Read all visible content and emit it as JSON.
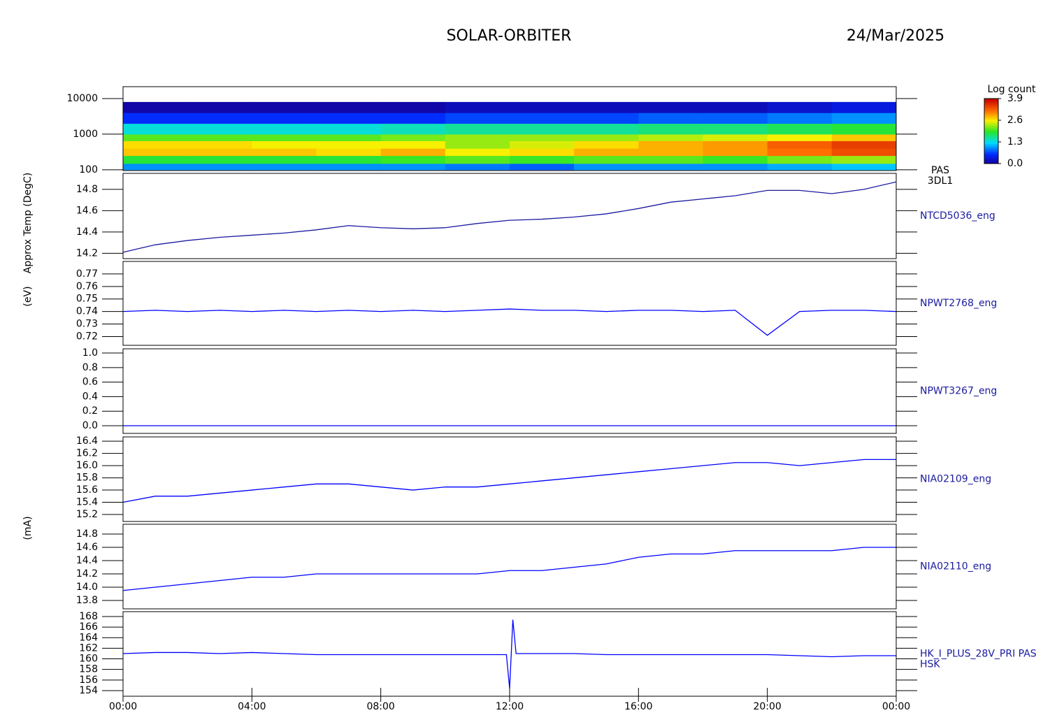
{
  "header": {
    "title": "SOLAR-ORBITER",
    "date": "24/Mar/2025"
  },
  "chart_data": [
    {
      "type": "heatmap",
      "ylabel": "(eV)",
      "legend": [
        "PAS",
        "3DL1"
      ],
      "log": true,
      "xlim": [
        0,
        24
      ],
      "ylim": [
        95,
        21500
      ],
      "yticks": [
        100,
        1000,
        10000
      ],
      "x_bins": [
        0,
        2,
        4,
        6,
        8,
        10,
        12,
        14,
        16,
        18,
        20,
        22,
        24
      ],
      "y_bins": [
        100,
        150,
        250,
        400,
        650,
        1000,
        2000,
        4000,
        8000
      ],
      "z": [
        [
          1.0,
          1.0,
          1.0,
          1.0,
          1.0,
          0.9,
          0.8,
          1.0,
          1.0,
          1.0,
          1.1,
          1.2
        ],
        [
          1.9,
          1.9,
          1.9,
          1.9,
          2.0,
          2.1,
          2.0,
          2.1,
          2.1,
          2.0,
          2.2,
          2.3
        ],
        [
          2.8,
          2.8,
          2.8,
          2.7,
          2.9,
          2.6,
          2.7,
          2.9,
          2.9,
          3.0,
          3.2,
          3.4
        ],
        [
          2.7,
          2.7,
          2.6,
          2.6,
          2.6,
          2.3,
          2.5,
          2.7,
          2.9,
          3.0,
          3.3,
          3.5
        ],
        [
          2.1,
          2.1,
          2.1,
          2.1,
          2.2,
          2.3,
          2.3,
          2.3,
          2.4,
          2.5,
          2.6,
          2.8
        ],
        [
          1.4,
          1.4,
          1.4,
          1.4,
          1.5,
          1.6,
          1.6,
          1.6,
          1.7,
          1.7,
          1.8,
          1.9
        ],
        [
          0.6,
          0.6,
          0.6,
          0.6,
          0.6,
          0.7,
          0.7,
          0.7,
          0.8,
          0.8,
          0.9,
          1.0
        ],
        [
          0.1,
          0.1,
          0.1,
          0.1,
          0.1,
          0.2,
          0.2,
          0.2,
          0.2,
          0.2,
          0.3,
          0.4
        ]
      ],
      "colorbar": {
        "label": "Log count",
        "lim": [
          0,
          3.9
        ],
        "ticks": [
          {
            "value": 0,
            "label": "0.0"
          },
          1.3,
          2.6,
          3.9
        ]
      }
    },
    {
      "type": "line",
      "ylabel": "Approx Temp (DegC)",
      "legend": [
        "NTCD5036_eng"
      ],
      "color": "#1a1aa0",
      "xlim": [
        0,
        24
      ],
      "ylim": [
        14.15,
        14.95
      ],
      "yticks": [
        14.2,
        14.4,
        14.6,
        14.8
      ],
      "x": [
        0,
        1,
        2,
        3,
        4,
        5,
        6,
        7,
        8,
        9,
        10,
        11,
        12,
        13,
        14,
        15,
        16,
        17,
        18,
        19,
        20,
        21,
        22,
        23,
        24
      ],
      "values": [
        14.21,
        14.28,
        14.32,
        14.35,
        14.37,
        14.39,
        14.42,
        14.46,
        14.44,
        14.43,
        14.44,
        14.48,
        14.51,
        14.52,
        14.54,
        14.57,
        14.62,
        14.68,
        14.71,
        14.74,
        14.79,
        14.79,
        14.76,
        14.8,
        14.87
      ]
    },
    {
      "type": "line",
      "legend": [
        "NPWT2768_eng"
      ],
      "color": "#0000ff",
      "xlim": [
        0,
        24
      ],
      "ylim": [
        0.713,
        0.78
      ],
      "yticks": [
        0.72,
        0.73,
        0.74,
        0.75,
        0.76,
        0.77
      ],
      "x": [
        0,
        1,
        2,
        3,
        4,
        5,
        6,
        7,
        8,
        9,
        10,
        11,
        12,
        13,
        14,
        15,
        16,
        17,
        18,
        19,
        20,
        21,
        22,
        23,
        24
      ],
      "values": [
        0.74,
        0.741,
        0.74,
        0.741,
        0.74,
        0.741,
        0.74,
        0.741,
        0.74,
        0.741,
        0.74,
        0.741,
        0.742,
        0.741,
        0.741,
        0.74,
        0.741,
        0.741,
        0.74,
        0.741,
        0.721,
        0.74,
        0.741,
        0.741,
        0.74
      ]
    },
    {
      "type": "line",
      "legend": [
        "NPWT3267_eng"
      ],
      "color": "#0000ff",
      "xlim": [
        0,
        24
      ],
      "ylim": [
        -0.106,
        1.058
      ],
      "yticks": [
        {
          "value": 0,
          "label": "0.0"
        },
        0.2,
        0.4,
        0.6,
        0.8,
        {
          "value": 1,
          "label": "1.0"
        }
      ],
      "x": [
        0,
        4,
        8,
        12,
        16,
        20,
        24
      ],
      "values": [
        0,
        0,
        0,
        0,
        0,
        0,
        0
      ]
    },
    {
      "type": "line",
      "legend": [
        "NIA02109_eng"
      ],
      "color": "#0000ff",
      "xlim": [
        0,
        24
      ],
      "ylim": [
        15.086,
        16.47
      ],
      "yticks": [
        15.2,
        15.4,
        15.6,
        15.8,
        {
          "value": 16,
          "label": "16.0"
        },
        16.2,
        16.4
      ],
      "x": [
        0,
        1,
        2,
        3,
        4,
        5,
        6,
        7,
        8,
        9,
        10,
        11,
        12,
        13,
        14,
        15,
        16,
        17,
        18,
        19,
        20,
        21,
        22,
        23,
        24
      ],
      "values": [
        15.4,
        15.5,
        15.5,
        15.55,
        15.6,
        15.65,
        15.7,
        15.7,
        15.65,
        15.6,
        15.65,
        15.65,
        15.7,
        15.75,
        15.8,
        15.85,
        15.9,
        15.95,
        16.0,
        16.05,
        16.05,
        16.0,
        16.05,
        16.1,
        16.1
      ]
    },
    {
      "type": "line",
      "legend": [
        "NIA02110_eng"
      ],
      "color": "#0000ff",
      "xlim": [
        0,
        24
      ],
      "ylim": [
        13.674,
        14.947
      ],
      "yticks": [
        13.8,
        {
          "value": 14,
          "label": "14.0"
        },
        14.2,
        14.4,
        14.6,
        14.8
      ],
      "x": [
        0,
        1,
        2,
        3,
        4,
        5,
        6,
        7,
        8,
        9,
        10,
        11,
        12,
        13,
        14,
        15,
        16,
        17,
        18,
        19,
        20,
        21,
        22,
        23,
        24
      ],
      "values": [
        13.95,
        14.0,
        14.05,
        14.1,
        14.15,
        14.15,
        14.2,
        14.2,
        14.2,
        14.2,
        14.2,
        14.2,
        14.25,
        14.25,
        14.3,
        14.35,
        14.45,
        14.5,
        14.5,
        14.55,
        14.55,
        14.55,
        14.55,
        14.6,
        14.6
      ]
    },
    {
      "type": "line",
      "ylabel": "(mA)",
      "legend": [
        "HK_I_PLUS_28V_PRI PAS",
        "HSK"
      ],
      "color": "#0000ff",
      "xlim": [
        0,
        24
      ],
      "ylim": [
        152.94,
        168.92
      ],
      "yticks": [
        154,
        156,
        158,
        160,
        162,
        164,
        166,
        168
      ],
      "xticks": [
        {
          "value": 0,
          "label": "00:00"
        },
        {
          "value": 4,
          "label": "04:00"
        },
        {
          "value": 8,
          "label": "08:00"
        },
        {
          "value": 12,
          "label": "12:00"
        },
        {
          "value": 16,
          "label": "16:00"
        },
        {
          "value": 20,
          "label": "20:00"
        },
        {
          "value": 24,
          "label": "00:00"
        }
      ],
      "x": [
        0,
        1,
        2,
        3,
        4,
        5,
        6,
        7,
        8,
        9,
        10,
        11,
        11.9,
        12.0,
        12.1,
        12.2,
        13,
        14,
        15,
        16,
        17,
        18,
        19,
        20,
        21,
        22,
        23,
        24
      ],
      "values": [
        161,
        161.2,
        161.2,
        161,
        161.2,
        161,
        160.8,
        160.8,
        160.8,
        160.8,
        160.8,
        160.8,
        160.8,
        154.4,
        167.4,
        161,
        161,
        161,
        160.8,
        160.8,
        160.8,
        160.8,
        160.8,
        160.8,
        160.6,
        160.4,
        160.6,
        160.6
      ]
    }
  ]
}
